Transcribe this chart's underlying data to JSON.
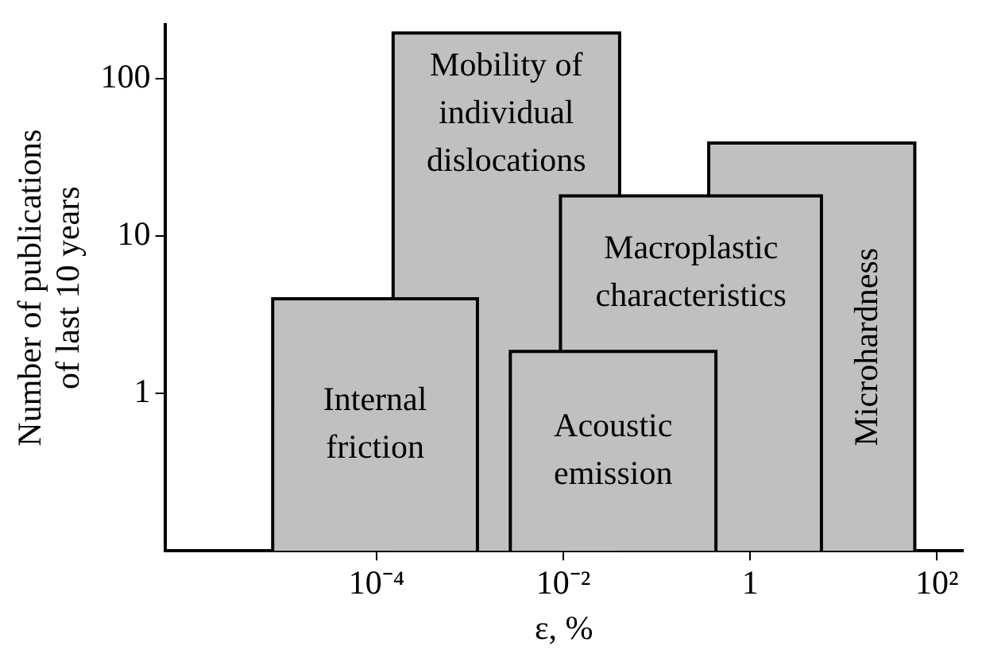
{
  "chart_data": {
    "type": "area",
    "xlabel": "ε, %",
    "ylabel": "Number of publications of last 10 years",
    "log": "xy",
    "xlim": [
      5.4e-07,
      190
    ],
    "ylim": [
      0.1,
      220
    ],
    "xticks": [
      {
        "value": 0.0001,
        "label": "10⁻⁴"
      },
      {
        "value": 0.01,
        "label": "10⁻²"
      },
      {
        "value": 1,
        "label": "1"
      },
      {
        "value": 100,
        "label": "10²"
      }
    ],
    "yticks": [
      1,
      10,
      100
    ],
    "grid": false,
    "legend": false,
    "series": [
      {
        "name": "Mobility of individual dislocations",
        "color": "#c0c0c0",
        "x": [
          0.00015,
          0.04
        ],
        "values": [
          195,
          195
        ]
      },
      {
        "name": "Microhardness",
        "color": "#c0c0c0",
        "x": [
          0.36,
          58
        ],
        "values": [
          39,
          39
        ]
      },
      {
        "name": "Macroplastic characteristics",
        "color": "#c0c0c0",
        "x": [
          0.0093,
          5.8
        ],
        "values": [
          18,
          18
        ]
      },
      {
        "name": "Acoustic emission",
        "color": "#c0c0c0",
        "x": [
          0.0027,
          0.43
        ],
        "values": [
          1.85,
          1.85
        ]
      },
      {
        "name": "Internal friction",
        "color": "#c0c0c0",
        "x": [
          7.7e-06,
          0.0012
        ],
        "values": [
          4,
          4
        ]
      }
    ]
  }
}
